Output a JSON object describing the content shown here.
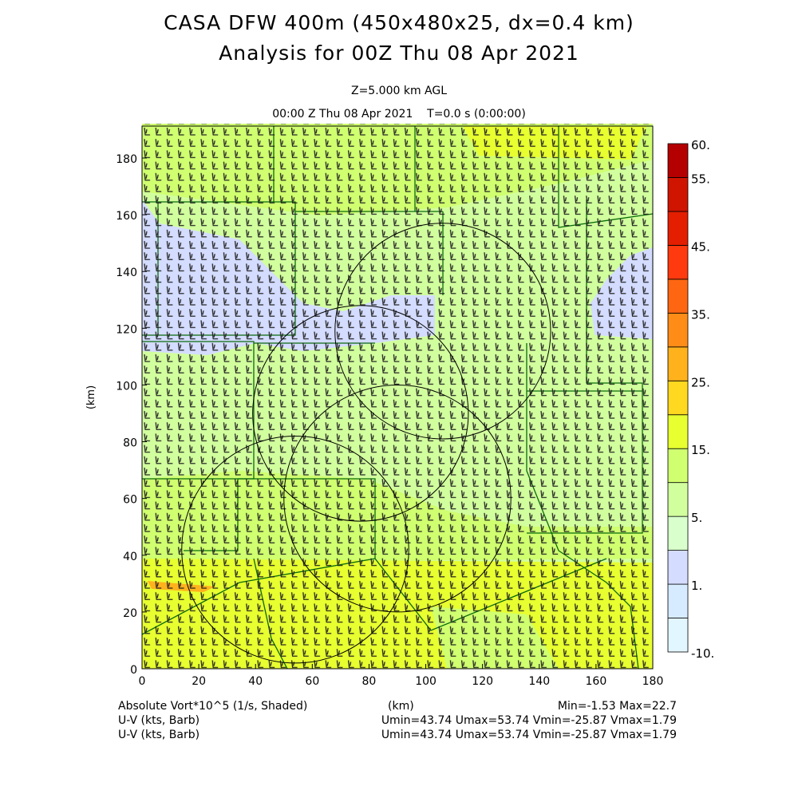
{
  "title": {
    "line1": "CASA DFW 400m (450x480x25, dx=0.4 km)",
    "line2": "Analysis for 00Z Thu 08 Apr 2021",
    "level": "Z=5.000 km AGL",
    "time": "00:00 Z Thu 08 Apr 2021    T=0.0 s (0:00:00)"
  },
  "footer": {
    "field1": "Absolute Vort*10^5 (1/s, Shaded)",
    "xunit": "(km)",
    "minmax": "Min=-1.53 Max=22.7",
    "field2": "U-V (kts, Barb)",
    "field2_stats": "Umin=43.74 Umax=53.74 Vmin=-25.87 Vmax=1.79",
    "field3": "U-V (kts, Barb)",
    "field3_stats": "Umin=43.74 Umax=53.74 Vmin=-25.87 Vmax=1.79"
  },
  "chart_data": {
    "type": "heatmap",
    "xlabel": "(km)",
    "ylabel": "(km)",
    "xlim": [
      0,
      180
    ],
    "ylim": [
      0,
      192
    ],
    "xticks": [
      "0",
      "20",
      "40",
      "60",
      "80",
      "100",
      "120",
      "140",
      "160",
      "180"
    ],
    "yticks": [
      "0",
      "20",
      "40",
      "60",
      "80",
      "100",
      "120",
      "140",
      "160",
      "180"
    ],
    "colorbar": {
      "colors_bottom_to_top": [
        "#e2f6ff",
        "#d6ebff",
        "#d4dcff",
        "#d8ffcc",
        "#d2ff9e",
        "#d0ff70",
        "#e8ff30",
        "#ffd820",
        "#ffb21c",
        "#ff8c16",
        "#ff6612",
        "#ff3a0e",
        "#e41e00",
        "#cf1400",
        "#b40000"
      ],
      "labels": [
        {
          "text": "-10.",
          "boundary": 0
        },
        {
          "text": "1.",
          "boundary": 2
        },
        {
          "text": "5.",
          "boundary": 4
        },
        {
          "text": "15.",
          "boundary": 6
        },
        {
          "text": "25.",
          "boundary": 8
        },
        {
          "text": "35.",
          "boundary": 10
        },
        {
          "text": "45.",
          "boundary": 12
        },
        {
          "text": "55.",
          "boundary": 14
        },
        {
          "text": "60.",
          "boundary": 15
        }
      ]
    },
    "range_rings_km": [
      {
        "cx": 106,
        "cy": 119,
        "r": 38
      },
      {
        "cx": 77,
        "cy": 90,
        "r": 38
      },
      {
        "cx": 90,
        "cy": 60,
        "r": 40
      },
      {
        "cx": 54,
        "cy": 42,
        "r": 40
      }
    ]
  }
}
